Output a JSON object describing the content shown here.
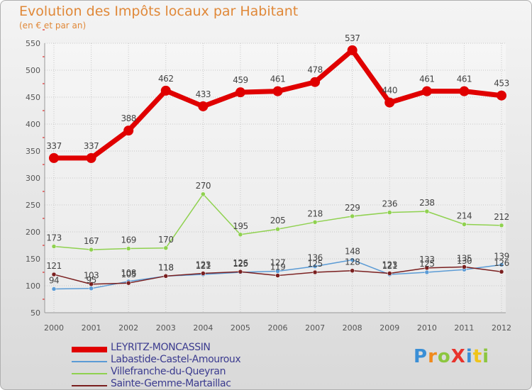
{
  "chart_data": {
    "type": "line",
    "title": "Evolution des Impôts locaux par Habitant",
    "subtitle": "(en € et par an)",
    "xlabel": "",
    "ylabel": "",
    "ylim": [
      50,
      550
    ],
    "yticks": [
      "50",
      "100",
      "150",
      "200",
      "250",
      "300",
      "350",
      "400",
      "450",
      "500",
      "550"
    ],
    "categories": [
      "2000",
      "2001",
      "2002",
      "2003",
      "2004",
      "2005",
      "2006",
      "2007",
      "2008",
      "2009",
      "2010",
      "2011",
      "2012"
    ],
    "series": [
      {
        "name": "LEYRITZ-MONCASSIN",
        "color": "#e00000",
        "values": [
          337,
          337,
          388,
          462,
          433,
          459,
          461,
          478,
          537,
          440,
          461,
          461,
          453
        ]
      },
      {
        "name": "Labastide-Castel-Amouroux",
        "color": "#5b9bd5",
        "values": [
          94,
          95,
          108,
          118,
          121,
          125,
          127,
          136,
          148,
          121,
          125,
          130,
          139
        ]
      },
      {
        "name": "Villefranche-du-Queyran",
        "color": "#8fd14f",
        "values": [
          173,
          167,
          169,
          170,
          270,
          195,
          205,
          218,
          229,
          236,
          238,
          214,
          212
        ]
      },
      {
        "name": "Sainte-Gemme-Martaillac",
        "color": "#7a1f1f",
        "values": [
          121,
          103,
          105,
          118,
          123,
          126,
          119,
          125,
          128,
          123,
          133,
          135,
          126
        ]
      }
    ],
    "legend_position": "bottom-left"
  },
  "logo": {
    "text": "ProXiti"
  }
}
